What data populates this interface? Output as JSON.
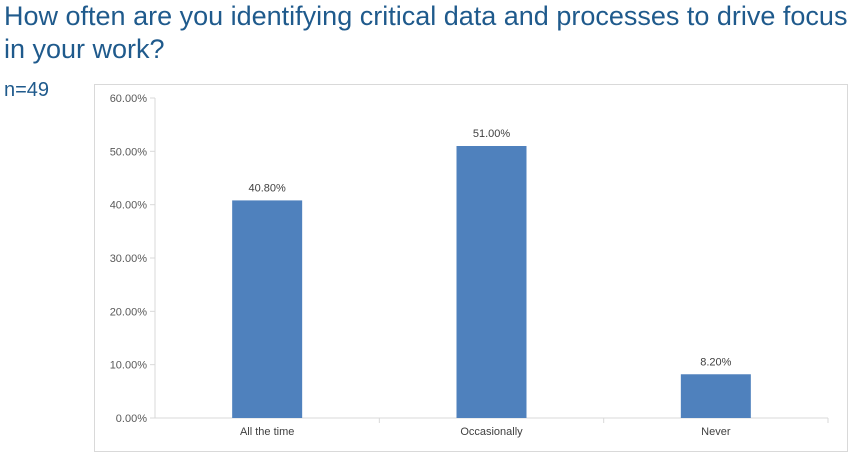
{
  "title": "How often are you identifying critical data and processes to drive focus in your work?",
  "sample": "n=49",
  "colors": {
    "bar": "#4f81bd",
    "title": "#1f5a8c"
  },
  "chart_data": {
    "type": "bar",
    "categories": [
      "All the time",
      "Occasionally",
      "Never"
    ],
    "values": [
      40.8,
      51.0,
      8.2
    ],
    "data_labels": [
      "40.80%",
      "51.00%",
      "8.20%"
    ],
    "ylim": [
      0,
      60
    ],
    "yticks": [
      0,
      10,
      20,
      30,
      40,
      50,
      60
    ],
    "ytick_labels": [
      "0.00%",
      "10.00%",
      "20.00%",
      "30.00%",
      "40.00%",
      "50.00%",
      "60.00%"
    ],
    "grid": false,
    "legend": "none"
  }
}
